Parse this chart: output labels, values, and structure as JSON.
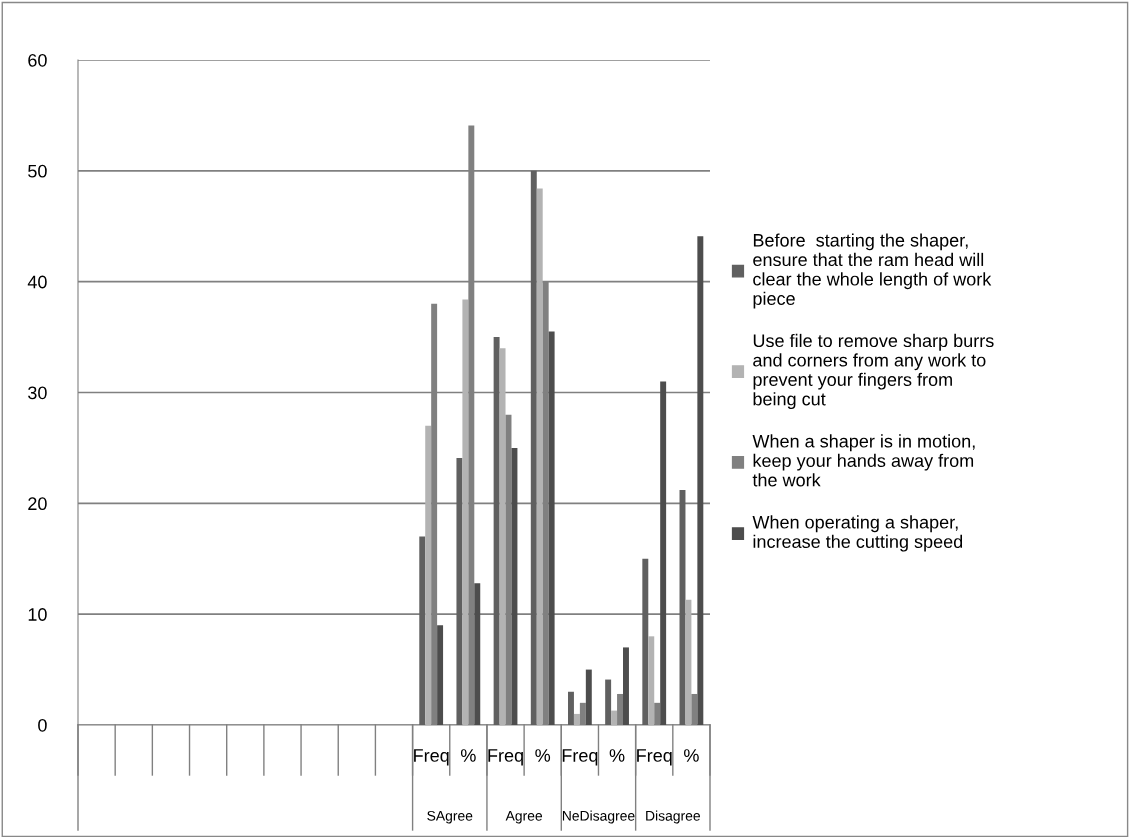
{
  "chart_data": {
    "type": "bar",
    "categories": [
      null,
      null,
      null,
      null,
      null,
      null,
      null,
      null,
      null,
      "Freq",
      "%",
      "Freq",
      "%",
      "Freq",
      "%",
      "Freq",
      "%"
    ],
    "annotations": [
      "SAgree",
      "Agree",
      "NeDisagree",
      "Disagree"
    ],
    "series": [
      {
        "name": "Before  starting the shaper,\nensure that the ram head will\nclear the whole length of work\npiece",
        "color": "#606060",
        "values": [
          null,
          null,
          null,
          null,
          null,
          null,
          null,
          null,
          null,
          17,
          24.1,
          35,
          50,
          3,
          4.1,
          15,
          21.2
        ]
      },
      {
        "name": "Use file to remove sharp burrs\nand corners from any work to\nprevent your fingers from\nbeing cut",
        "color": "#b3b3b3",
        "values": [
          null,
          null,
          null,
          null,
          null,
          null,
          null,
          null,
          null,
          27,
          38.4,
          34,
          48.4,
          1,
          1.3,
          8,
          11.3
        ]
      },
      {
        "name": "When a shaper is in motion,\nkeep your hands away from\nthe work",
        "color": "#808080",
        "values": [
          null,
          null,
          null,
          null,
          null,
          null,
          null,
          null,
          null,
          38,
          54.1,
          28,
          40,
          2,
          2.8,
          2,
          2.8
        ]
      },
      {
        "name": "When operating a shaper,\nincrease the cutting speed",
        "color": "#4d4d4d",
        "values": [
          null,
          null,
          null,
          null,
          null,
          null,
          null,
          null,
          null,
          9,
          12.8,
          25,
          35.5,
          5,
          7.0,
          31,
          44.1
        ]
      }
    ],
    "ylim": [
      0,
      60
    ],
    "yticks": [
      0,
      10,
      20,
      30,
      40,
      50,
      60
    ],
    "grid": "y",
    "legend": "right"
  }
}
